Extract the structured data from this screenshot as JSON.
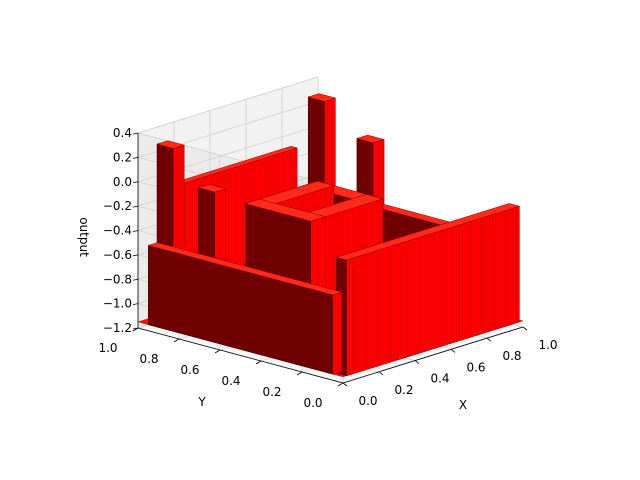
{
  "chart_data": {
    "type": "surface3d",
    "title": "",
    "xlabel": "X",
    "ylabel": "Y",
    "zlabel": "output",
    "xlim": [
      0,
      1
    ],
    "ylim": [
      0,
      1
    ],
    "zlim": [
      -1.2,
      0.4
    ],
    "x_ticks": [
      "0.0",
      "0.2",
      "0.4",
      "0.6",
      "0.8",
      "1.0"
    ],
    "y_ticks": [
      "0.0",
      "0.2",
      "0.4",
      "0.6",
      "0.8",
      "1.0"
    ],
    "z_ticks": [
      "−1.2",
      "−1.0",
      "−0.8",
      "−0.6",
      "−0.4",
      "−0.2",
      "0.0",
      "0.2",
      "0.4"
    ],
    "grid": true,
    "surface_color": "#ff0000",
    "edge_color": "#8b0000",
    "blocks": [
      {
        "name": "front-wall-front",
        "x0": 0.02,
        "x1": 0.98,
        "y0": 0.0,
        "y1": 0.05,
        "z": -0.2
      },
      {
        "name": "back-wall",
        "x0": 0.15,
        "x1": 0.85,
        "y0": 0.97,
        "y1": 1.0,
        "z": -0.1
      },
      {
        "name": "inner-ring-front",
        "x0": 0.3,
        "x1": 0.7,
        "y0": 0.42,
        "y1": 0.5,
        "z": -0.2
      },
      {
        "name": "inner-ring-back",
        "x0": 0.3,
        "x1": 0.7,
        "y0": 0.66,
        "y1": 0.74,
        "z": -0.2
      },
      {
        "name": "inner-ring-left",
        "x0": 0.3,
        "x1": 0.38,
        "y0": 0.42,
        "y1": 0.74,
        "z": -0.2
      },
      {
        "name": "inner-ring-right",
        "x0": 0.62,
        "x1": 0.7,
        "y0": 0.42,
        "y1": 0.74,
        "z": -0.2
      },
      {
        "name": "left-wall",
        "x0": 0.0,
        "x1": 0.05,
        "y0": 0.05,
        "y1": 0.95,
        "z": -0.5
      },
      {
        "name": "right-wall",
        "x0": 0.95,
        "x1": 1.0,
        "y0": 0.05,
        "y1": 0.95,
        "z": -0.5
      },
      {
        "name": "left-pillar-back",
        "x0": 0.06,
        "x1": 0.12,
        "y0": 0.88,
        "y1": 0.96,
        "z": 0.3
      },
      {
        "name": "right-pillar-back",
        "x0": 0.9,
        "x1": 0.96,
        "y0": 0.88,
        "y1": 0.96,
        "z": 0.3
      },
      {
        "name": "left-pillar-front",
        "x0": 0.04,
        "x1": 0.1,
        "y0": 0.66,
        "y1": 0.74,
        "z": 0.05
      },
      {
        "name": "right-pillar-front",
        "x0": 0.92,
        "x1": 0.98,
        "y0": 0.66,
        "y1": 0.74,
        "z": 0.05
      }
    ]
  }
}
